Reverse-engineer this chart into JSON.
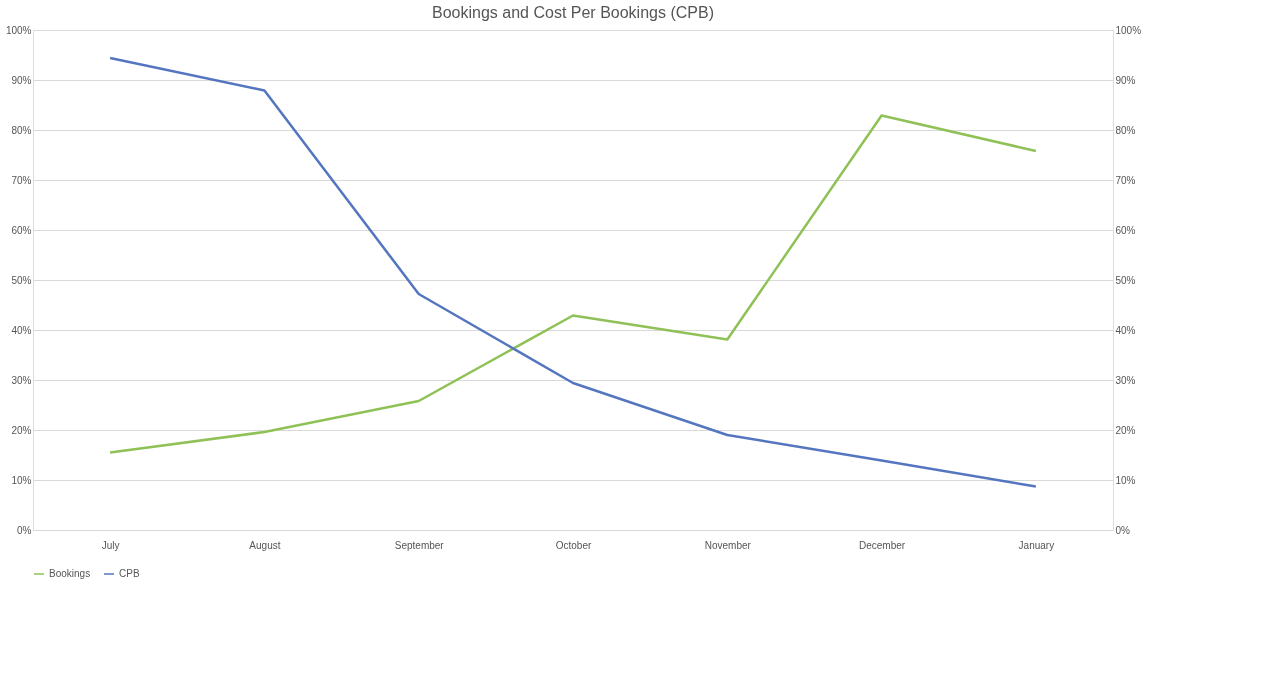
{
  "chart_data": {
    "type": "line",
    "title": "Bookings and Cost Per Bookings (CPB)",
    "categories": [
      "July",
      "August",
      "September",
      "October",
      "November",
      "December",
      "January"
    ],
    "series": [
      {
        "name": "Bookings",
        "color": "#8fc156",
        "values": [
          15.5,
          19.6,
          25.8,
          42.9,
          38.1,
          82.9,
          75.8
        ]
      },
      {
        "name": "CPB",
        "color": "#5475bf",
        "values": [
          94.4,
          87.9,
          47.2,
          29.4,
          19.0,
          13.9,
          8.7
        ]
      }
    ],
    "ylim": [
      0,
      100
    ],
    "yticks": [
      {
        "value": 0,
        "label": "0%"
      },
      {
        "value": 10,
        "label": "10%"
      },
      {
        "value": 20,
        "label": "20%"
      },
      {
        "value": 30,
        "label": "30%"
      },
      {
        "value": 40,
        "label": "40%"
      },
      {
        "value": 50,
        "label": "50%"
      },
      {
        "value": 60,
        "label": "60%"
      },
      {
        "value": 70,
        "label": "70%"
      },
      {
        "value": 80,
        "label": "80%"
      },
      {
        "value": 90,
        "label": "90%"
      },
      {
        "value": 100,
        "label": "100%"
      }
    ],
    "y2lim": [
      0,
      100
    ],
    "y2ticks": [
      {
        "value": 0,
        "label": "0%"
      },
      {
        "value": 10,
        "label": "10%"
      },
      {
        "value": 20,
        "label": "20%"
      },
      {
        "value": 30,
        "label": "30%"
      },
      {
        "value": 40,
        "label": "40%"
      },
      {
        "value": 50,
        "label": "50%"
      },
      {
        "value": 60,
        "label": "60%"
      },
      {
        "value": 70,
        "label": "70%"
      },
      {
        "value": 80,
        "label": "80%"
      },
      {
        "value": 90,
        "label": "90%"
      },
      {
        "value": 100,
        "label": "100%"
      }
    ],
    "grid": "y",
    "legend": "bottom",
    "marker": "none",
    "line_style": "solid"
  }
}
